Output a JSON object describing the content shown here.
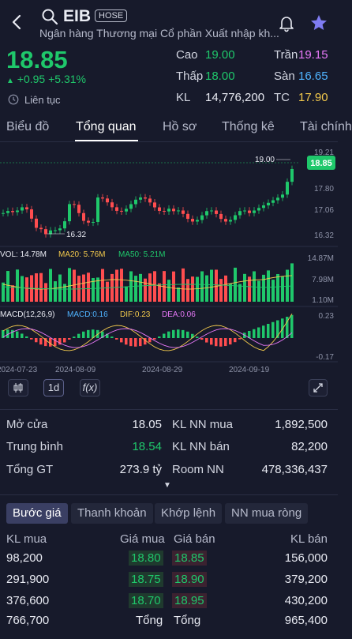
{
  "header": {
    "ticker": "EIB",
    "exchange": "HOSE",
    "company_name": "Ngân hàng Thương mại Cổ phần Xuất nhập kh...",
    "icons": [
      "back-arrow-icon",
      "search-icon",
      "bell-icon",
      "star-icon"
    ]
  },
  "quote": {
    "price": "18.85",
    "change": "+0.95",
    "change_pct": "+5.31%",
    "session": "Liên tục"
  },
  "stats": {
    "high_label": "Cao",
    "high": "19.00",
    "low_label": "Thấp",
    "low": "18.00",
    "vol_label": "KL",
    "vol": "14,776,200",
    "ceiling_label": "Trần",
    "ceiling": "19.15",
    "floor_label": "Sàn",
    "floor": "16.65",
    "ref_label": "TC",
    "ref": "17.90"
  },
  "tabs": [
    "Biểu đồ",
    "Tổng quan",
    "Hồ sơ",
    "Thống kê",
    "Tài chính"
  ],
  "active_tab": "Tổng quan",
  "chart": {
    "price_axis": [
      "19.21",
      "17.80",
      "17.06",
      "16.32"
    ],
    "current_price_badge": "18.85",
    "high_marker": "19.00",
    "low_marker": "16.32",
    "vol_legend": {
      "vol": "VOL: 14.78M",
      "ma20": "MA20: 5.76M",
      "ma50": "MA50: 5.21M"
    },
    "vol_axis": [
      "14.87M",
      "7.98M",
      "1.10M"
    ],
    "macd_legend": {
      "macd_params": "MACD(12,26,9)",
      "macd": "MACD:0.16",
      "dif": "DIF:0.23",
      "dea": "DEA:0.06"
    },
    "macd_axis": [
      "0.23",
      "-0.17"
    ],
    "date_labels": [
      "2024-07-23",
      "2024-08-09",
      "2024-08-29",
      "2024-09-19"
    ],
    "controls": {
      "interval": "1d",
      "indicator": "f(x)"
    }
  },
  "overview": {
    "open_label": "Mở cửa",
    "open": "18.05",
    "avg_label": "Trung bình",
    "avg": "18.54",
    "total_value_label": "Tổng GT",
    "total_value": "273.9 tỷ",
    "foreign_buy_label": "KL NN mua",
    "foreign_buy": "1,892,500",
    "foreign_sell_label": "KL NN bán",
    "foreign_sell": "82,200",
    "room_label": "Room NN",
    "room": "478,336,437"
  },
  "bottom_tabs": [
    "Bước giá",
    "Thanh khoản",
    "Khớp lệnh",
    "NN mua ròng"
  ],
  "orderbook": {
    "headers": {
      "buy_vol": "KL mua",
      "buy_price": "Giá mua",
      "sell_price": "Giá bán",
      "sell_vol": "KL bán"
    },
    "rows": [
      {
        "buy_vol": "98,200",
        "buy_price": "18.80",
        "sell_price": "18.85",
        "sell_vol": "156,000"
      },
      {
        "buy_vol": "291,900",
        "buy_price": "18.75",
        "sell_price": "18.90",
        "sell_vol": "379,200"
      },
      {
        "buy_vol": "376,600",
        "buy_price": "18.70",
        "sell_price": "18.95",
        "sell_vol": "430,200"
      }
    ],
    "total": {
      "buy_vol": "766,700",
      "buy_label": "Tổng",
      "sell_label": "Tổng",
      "sell_vol": "965,400"
    }
  },
  "colors": {
    "up": "#1fc86b",
    "down": "#ff4d4f",
    "ref": "#f2c94c",
    "ceiling": "#e879f9",
    "floor": "#4fb3ff",
    "background": "#171a2b"
  }
}
